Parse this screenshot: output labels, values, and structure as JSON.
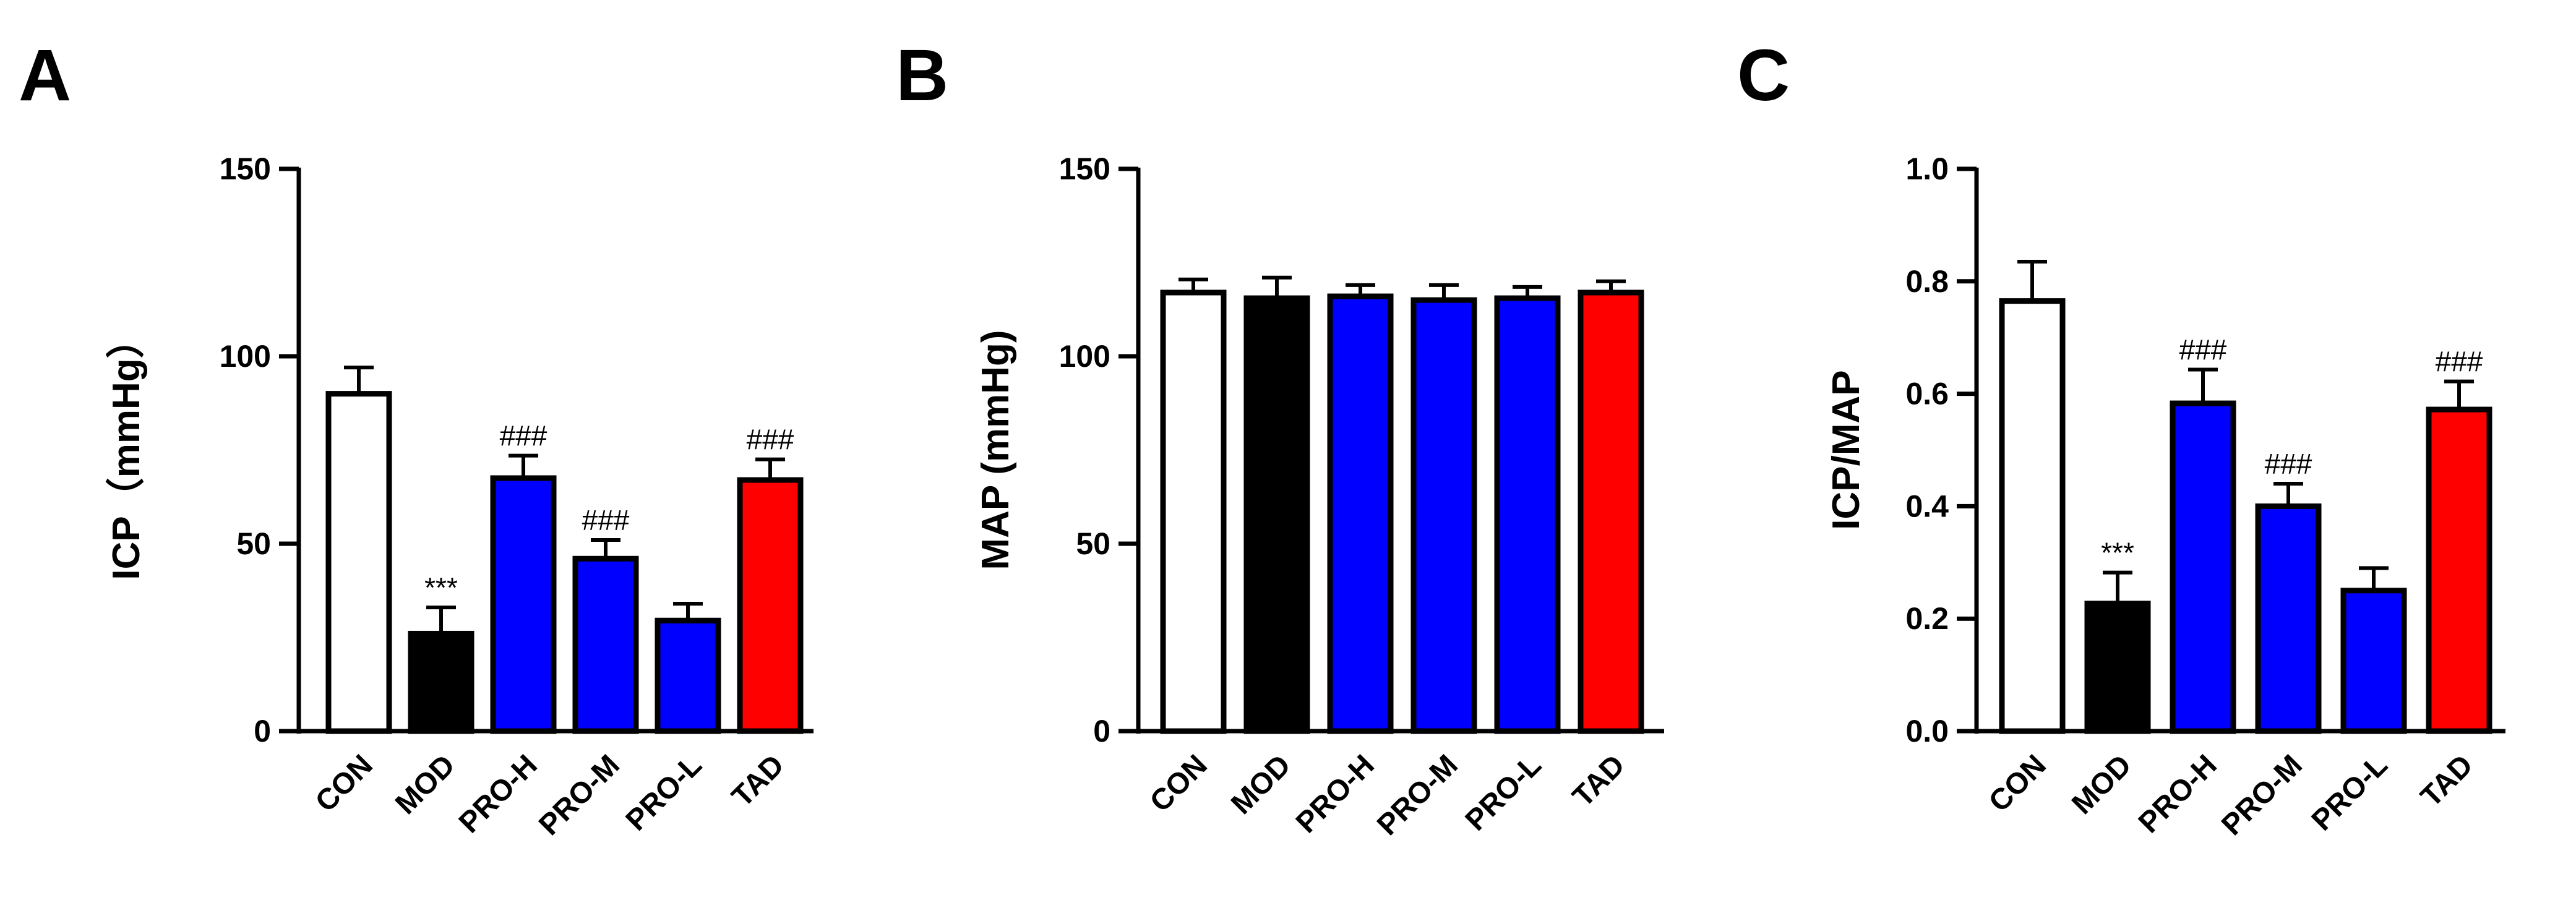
{
  "chart_data": [
    {
      "panel": "A",
      "type": "bar",
      "categories": [
        "CON",
        "MOD",
        "PRO-H",
        "PRO-M",
        "PRO-L",
        "TAD"
      ],
      "values": [
        90,
        26,
        67.5,
        46,
        29.5,
        67
      ],
      "errors": [
        7,
        7,
        6,
        5,
        4.5,
        5.5
      ],
      "annotations": [
        "",
        "***",
        "###",
        "###",
        "",
        "###"
      ],
      "colors": [
        "#ffffff",
        "#000000",
        "#0000ff",
        "#0000ff",
        "#0000ff",
        "#ff0000"
      ],
      "ylabel": "ICP（mmHg）",
      "ylim": [
        0,
        150
      ],
      "yticks": [
        0,
        50,
        100,
        150
      ],
      "ytick_labels": [
        "0",
        "50",
        "100",
        "150"
      ]
    },
    {
      "panel": "B",
      "type": "bar",
      "categories": [
        "CON",
        "MOD",
        "PRO-H",
        "PRO-M",
        "PRO-L",
        "TAD"
      ],
      "values": [
        117,
        115.5,
        116,
        115,
        115.5,
        117
      ],
      "errors": [
        3.5,
        5.5,
        3,
        4,
        3,
        3
      ],
      "annotations": [
        "",
        "",
        "",
        "",
        "",
        ""
      ],
      "colors": [
        "#ffffff",
        "#000000",
        "#0000ff",
        "#0000ff",
        "#0000ff",
        "#ff0000"
      ],
      "ylabel": "MAP (mmHg)",
      "ylim": [
        0,
        150
      ],
      "yticks": [
        0,
        50,
        100,
        150
      ],
      "ytick_labels": [
        "0",
        "50",
        "100",
        "150"
      ]
    },
    {
      "panel": "C",
      "type": "bar",
      "categories": [
        "CON",
        "MOD",
        "PRO-H",
        "PRO-M",
        "PRO-L",
        "TAD"
      ],
      "values": [
        0.765,
        0.227,
        0.583,
        0.4,
        0.25,
        0.572
      ],
      "errors": [
        0.07,
        0.055,
        0.06,
        0.04,
        0.04,
        0.05
      ],
      "annotations": [
        "",
        "***",
        "###",
        "###",
        "",
        "###"
      ],
      "colors": [
        "#ffffff",
        "#000000",
        "#0000ff",
        "#0000ff",
        "#0000ff",
        "#ff0000"
      ],
      "ylabel": "ICP/MAP",
      "ylim": [
        0,
        1.0
      ],
      "yticks": [
        0,
        0.2,
        0.4,
        0.6,
        0.8,
        1.0
      ],
      "ytick_labels": [
        "0.0",
        "0.2",
        "0.4",
        "0.6",
        "0.8",
        "1.0"
      ]
    }
  ]
}
